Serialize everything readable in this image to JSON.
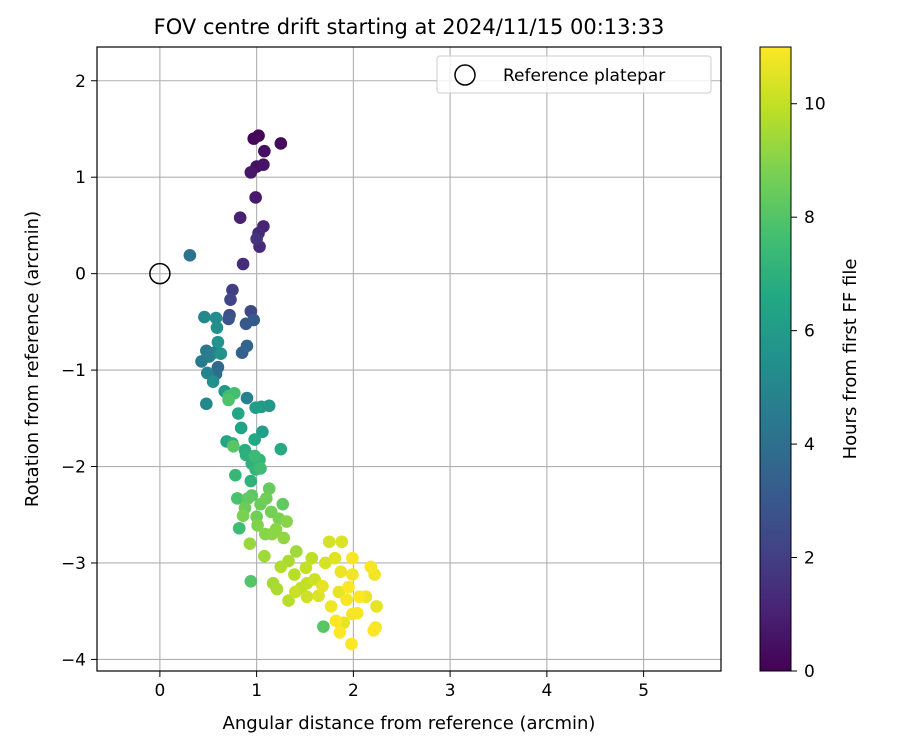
{
  "chart_data": {
    "type": "scatter",
    "title": "FOV centre drift starting at 2024/11/15 00:13:33",
    "xlabel": "Angular distance from reference (arcmin)",
    "ylabel": "Rotation from reference (arcmin)",
    "xlim": [
      -0.65,
      5.8
    ],
    "ylim": [
      -4.12,
      2.35
    ],
    "xticks": [
      0,
      1,
      2,
      3,
      4,
      5
    ],
    "yticks": [
      -4,
      -3,
      -2,
      -1,
      0,
      1,
      2
    ],
    "grid": true,
    "legend": {
      "position": "upper-right",
      "label": "Reference platepar"
    },
    "reference_point": {
      "x": 0,
      "y": 0
    },
    "colorbar": {
      "label": "Hours from first FF file",
      "colormap": "viridis",
      "range": [
        0,
        11
      ],
      "ticks": [
        0,
        2,
        4,
        6,
        8,
        10
      ]
    },
    "points": [
      {
        "x": 0.97,
        "y": 1.4,
        "c": 0.1
      },
      {
        "x": 1.02,
        "y": 1.43,
        "c": 0.2
      },
      {
        "x": 1.25,
        "y": 1.35,
        "c": 0.3
      },
      {
        "x": 1.08,
        "y": 1.27,
        "c": 0.4
      },
      {
        "x": 1.0,
        "y": 1.11,
        "c": 0.5
      },
      {
        "x": 1.07,
        "y": 1.13,
        "c": 0.6
      },
      {
        "x": 0.94,
        "y": 1.05,
        "c": 0.7
      },
      {
        "x": 0.99,
        "y": 0.79,
        "c": 0.8
      },
      {
        "x": 0.83,
        "y": 0.58,
        "c": 1.0
      },
      {
        "x": 1.07,
        "y": 0.49,
        "c": 1.1
      },
      {
        "x": 1.02,
        "y": 0.42,
        "c": 1.2
      },
      {
        "x": 1.03,
        "y": 0.28,
        "c": 1.3
      },
      {
        "x": 0.86,
        "y": 0.1,
        "c": 1.4
      },
      {
        "x": 1.0,
        "y": 0.36,
        "c": 1.6
      },
      {
        "x": 0.75,
        "y": -0.17,
        "c": 2.0
      },
      {
        "x": 0.73,
        "y": -0.27,
        "c": 2.2
      },
      {
        "x": 0.94,
        "y": -0.39,
        "c": 2.4
      },
      {
        "x": 0.72,
        "y": -0.43,
        "c": 2.6
      },
      {
        "x": 0.71,
        "y": -0.47,
        "c": 2.8
      },
      {
        "x": 0.89,
        "y": -0.52,
        "c": 3.0
      },
      {
        "x": 0.97,
        "y": -0.48,
        "c": 3.1
      },
      {
        "x": 0.85,
        "y": -0.82,
        "c": 3.3
      },
      {
        "x": 0.9,
        "y": -0.75,
        "c": 3.5
      },
      {
        "x": 0.6,
        "y": -0.97,
        "c": 3.7
      },
      {
        "x": 0.58,
        "y": -1.04,
        "c": 3.9
      },
      {
        "x": 0.31,
        "y": 0.19,
        "c": 4.2
      },
      {
        "x": 0.48,
        "y": -0.8,
        "c": 4.4
      },
      {
        "x": 0.43,
        "y": -0.91,
        "c": 4.5
      },
      {
        "x": 0.51,
        "y": -0.86,
        "c": 4.6
      },
      {
        "x": 0.56,
        "y": -0.82,
        "c": 4.7
      },
      {
        "x": 0.9,
        "y": -1.29,
        "c": 4.8
      },
      {
        "x": 0.49,
        "y": -1.03,
        "c": 4.9
      },
      {
        "x": 0.48,
        "y": -1.35,
        "c": 5.0
      },
      {
        "x": 0.46,
        "y": -0.45,
        "c": 5.1
      },
      {
        "x": 0.58,
        "y": -0.46,
        "c": 5.3
      },
      {
        "x": 0.59,
        "y": -0.56,
        "c": 5.4
      },
      {
        "x": 0.55,
        "y": -1.12,
        "c": 5.5
      },
      {
        "x": 0.63,
        "y": -0.83,
        "c": 5.6
      },
      {
        "x": 0.6,
        "y": -0.71,
        "c": 5.7
      },
      {
        "x": 0.67,
        "y": -1.22,
        "c": 5.8
      },
      {
        "x": 1.13,
        "y": -1.37,
        "c": 5.9
      },
      {
        "x": 1.05,
        "y": -1.38,
        "c": 6.0
      },
      {
        "x": 0.99,
        "y": -1.39,
        "c": 6.1
      },
      {
        "x": 1.06,
        "y": -1.64,
        "c": 6.2
      },
      {
        "x": 0.84,
        "y": -1.6,
        "c": 6.3
      },
      {
        "x": 0.69,
        "y": -1.74,
        "c": 6.4
      },
      {
        "x": 0.81,
        "y": -1.45,
        "c": 6.5
      },
      {
        "x": 0.98,
        "y": -1.72,
        "c": 6.6
      },
      {
        "x": 1.25,
        "y": -1.82,
        "c": 6.7
      },
      {
        "x": 0.88,
        "y": -1.83,
        "c": 6.8
      },
      {
        "x": 0.75,
        "y": -1.76,
        "c": 6.9
      },
      {
        "x": 0.95,
        "y": -1.97,
        "c": 7.0
      },
      {
        "x": 0.94,
        "y": -2.15,
        "c": 7.1
      },
      {
        "x": 1.03,
        "y": -1.93,
        "c": 7.2
      },
      {
        "x": 0.78,
        "y": -2.09,
        "c": 7.3
      },
      {
        "x": 0.98,
        "y": -1.89,
        "c": 7.4
      },
      {
        "x": 0.82,
        "y": -2.64,
        "c": 7.5
      },
      {
        "x": 0.71,
        "y": -1.27,
        "c": 7.6
      },
      {
        "x": 0.77,
        "y": -1.24,
        "c": 7.7
      },
      {
        "x": 0.8,
        "y": -2.33,
        "c": 7.8
      },
      {
        "x": 0.71,
        "y": -1.31,
        "c": 7.9
      },
      {
        "x": 0.94,
        "y": -3.19,
        "c": 8.0
      },
      {
        "x": 1.69,
        "y": -3.66,
        "c": 8.1
      },
      {
        "x": 0.76,
        "y": -1.79,
        "c": 8.1
      },
      {
        "x": 0.95,
        "y": -2.3,
        "c": 8.2
      },
      {
        "x": 1.27,
        "y": -2.39,
        "c": 8.3
      },
      {
        "x": 1.13,
        "y": -2.23,
        "c": 8.4
      },
      {
        "x": 0.88,
        "y": -2.43,
        "c": 8.5
      },
      {
        "x": 1.0,
        "y": -2.52,
        "c": 8.6
      },
      {
        "x": 1.15,
        "y": -2.47,
        "c": 8.7
      },
      {
        "x": 0.86,
        "y": -2.51,
        "c": 8.8
      },
      {
        "x": 1.01,
        "y": -2.61,
        "c": 8.9
      },
      {
        "x": 1.09,
        "y": -2.7,
        "c": 9.0
      },
      {
        "x": 1.2,
        "y": -2.65,
        "c": 9.1
      },
      {
        "x": 1.28,
        "y": -2.74,
        "c": 9.2
      },
      {
        "x": 0.93,
        "y": -2.8,
        "c": 9.3
      },
      {
        "x": 1.08,
        "y": -2.93,
        "c": 9.4
      },
      {
        "x": 1.17,
        "y": -3.21,
        "c": 9.5
      },
      {
        "x": 1.33,
        "y": -2.98,
        "c": 9.6
      },
      {
        "x": 1.25,
        "y": -3.04,
        "c": 9.7
      },
      {
        "x": 1.39,
        "y": -3.12,
        "c": 9.8
      },
      {
        "x": 1.46,
        "y": -3.26,
        "c": 9.9
      },
      {
        "x": 1.51,
        "y": -3.05,
        "c": 10.0
      },
      {
        "x": 1.4,
        "y": -3.3,
        "c": 10.1
      },
      {
        "x": 1.6,
        "y": -3.17,
        "c": 10.2
      },
      {
        "x": 1.75,
        "y": -2.78,
        "c": 10.3
      },
      {
        "x": 1.88,
        "y": -2.78,
        "c": 10.4
      },
      {
        "x": 1.81,
        "y": -2.95,
        "c": 10.5
      },
      {
        "x": 1.68,
        "y": -3.24,
        "c": 10.6
      },
      {
        "x": 1.87,
        "y": -3.09,
        "c": 10.7
      },
      {
        "x": 1.99,
        "y": -3.12,
        "c": 10.8
      },
      {
        "x": 2.22,
        "y": -3.12,
        "c": 10.8
      },
      {
        "x": 2.18,
        "y": -3.04,
        "c": 10.9
      },
      {
        "x": 1.99,
        "y": -2.95,
        "c": 10.9
      },
      {
        "x": 1.95,
        "y": -3.25,
        "c": 11.0
      },
      {
        "x": 2.06,
        "y": -3.35,
        "c": 11.0
      },
      {
        "x": 2.13,
        "y": -3.35,
        "c": 10.7
      },
      {
        "x": 2.24,
        "y": -3.45,
        "c": 10.6
      },
      {
        "x": 1.93,
        "y": -3.38,
        "c": 10.9
      },
      {
        "x": 1.77,
        "y": -3.45,
        "c": 10.8
      },
      {
        "x": 1.82,
        "y": -3.6,
        "c": 11.0
      },
      {
        "x": 2.04,
        "y": -3.52,
        "c": 10.9
      },
      {
        "x": 1.86,
        "y": -3.72,
        "c": 11.0
      },
      {
        "x": 1.98,
        "y": -3.84,
        "c": 11.0
      },
      {
        "x": 2.21,
        "y": -3.7,
        "c": 11.0
      },
      {
        "x": 2.23,
        "y": -3.67,
        "c": 10.9
      },
      {
        "x": 1.9,
        "y": -3.62,
        "c": 10.6
      },
      {
        "x": 1.64,
        "y": -3.34,
        "c": 10.4
      },
      {
        "x": 1.52,
        "y": -3.35,
        "c": 10.2
      },
      {
        "x": 1.33,
        "y": -3.39,
        "c": 9.8
      },
      {
        "x": 1.21,
        "y": -3.27,
        "c": 9.6
      },
      {
        "x": 1.57,
        "y": -2.95,
        "c": 9.9
      },
      {
        "x": 1.41,
        "y": -2.88,
        "c": 9.4
      },
      {
        "x": 1.31,
        "y": -2.57,
        "c": 9.0
      },
      {
        "x": 1.23,
        "y": -2.54,
        "c": 8.8
      },
      {
        "x": 1.1,
        "y": -2.33,
        "c": 8.6
      },
      {
        "x": 1.04,
        "y": -2.39,
        "c": 8.5
      },
      {
        "x": 0.91,
        "y": -2.33,
        "c": 8.3
      },
      {
        "x": 1.16,
        "y": -2.7,
        "c": 9.1
      },
      {
        "x": 1.52,
        "y": -3.21,
        "c": 10.0
      },
      {
        "x": 1.71,
        "y": -3.0,
        "c": 10.3
      },
      {
        "x": 1.99,
        "y": -3.53,
        "c": 10.9
      },
      {
        "x": 1.85,
        "y": -3.3,
        "c": 10.6
      },
      {
        "x": 0.99,
        "y": -2.03,
        "c": 7.2
      },
      {
        "x": 0.89,
        "y": -1.88,
        "c": 7.0
      },
      {
        "x": 1.04,
        "y": -2.02,
        "c": 7.5
      }
    ]
  }
}
